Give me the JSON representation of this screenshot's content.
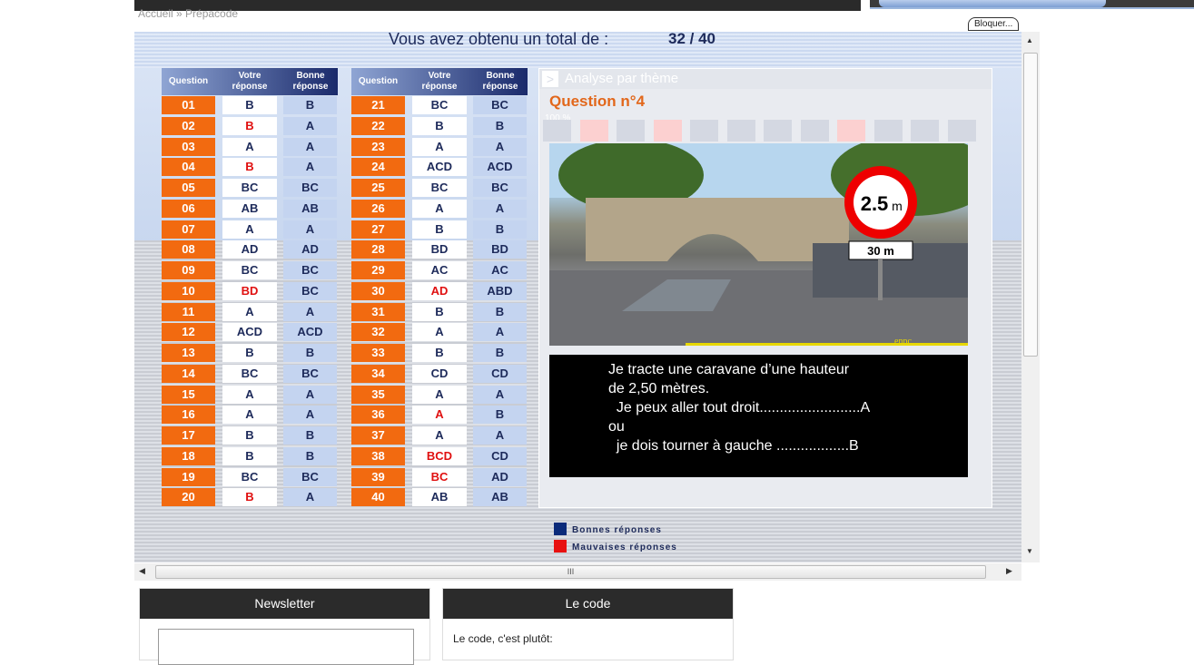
{
  "breadcrumb": "Accueil » Prépacode",
  "block_button": "Bloquer...",
  "result": {
    "title": "Vous avez obtenu un total de :",
    "score": "32 / 40"
  },
  "table_headers": {
    "question": "Question",
    "votre": "Votre réponse",
    "bonne": "Bonne réponse"
  },
  "rows": [
    {
      "q": "01",
      "v": "B",
      "b": "B",
      "ok": true
    },
    {
      "q": "02",
      "v": "B",
      "b": "A",
      "ok": false
    },
    {
      "q": "03",
      "v": "A",
      "b": "A",
      "ok": true
    },
    {
      "q": "04",
      "v": "B",
      "b": "A",
      "ok": false
    },
    {
      "q": "05",
      "v": "BC",
      "b": "BC",
      "ok": true
    },
    {
      "q": "06",
      "v": "AB",
      "b": "AB",
      "ok": true
    },
    {
      "q": "07",
      "v": "A",
      "b": "A",
      "ok": true
    },
    {
      "q": "08",
      "v": "AD",
      "b": "AD",
      "ok": true
    },
    {
      "q": "09",
      "v": "BC",
      "b": "BC",
      "ok": true
    },
    {
      "q": "10",
      "v": "BD",
      "b": "BC",
      "ok": false
    },
    {
      "q": "11",
      "v": "A",
      "b": "A",
      "ok": true
    },
    {
      "q": "12",
      "v": "ACD",
      "b": "ACD",
      "ok": true
    },
    {
      "q": "13",
      "v": "B",
      "b": "B",
      "ok": true
    },
    {
      "q": "14",
      "v": "BC",
      "b": "BC",
      "ok": true
    },
    {
      "q": "15",
      "v": "A",
      "b": "A",
      "ok": true
    },
    {
      "q": "16",
      "v": "A",
      "b": "A",
      "ok": true
    },
    {
      "q": "17",
      "v": "B",
      "b": "B",
      "ok": true
    },
    {
      "q": "18",
      "v": "B",
      "b": "B",
      "ok": true
    },
    {
      "q": "19",
      "v": "BC",
      "b": "BC",
      "ok": true
    },
    {
      "q": "20",
      "v": "B",
      "b": "A",
      "ok": false
    },
    {
      "q": "21",
      "v": "BC",
      "b": "BC",
      "ok": true
    },
    {
      "q": "22",
      "v": "B",
      "b": "B",
      "ok": true
    },
    {
      "q": "23",
      "v": "A",
      "b": "A",
      "ok": true
    },
    {
      "q": "24",
      "v": "ACD",
      "b": "ACD",
      "ok": true
    },
    {
      "q": "25",
      "v": "BC",
      "b": "BC",
      "ok": true
    },
    {
      "q": "26",
      "v": "A",
      "b": "A",
      "ok": true
    },
    {
      "q": "27",
      "v": "B",
      "b": "B",
      "ok": true
    },
    {
      "q": "28",
      "v": "BD",
      "b": "BD",
      "ok": true
    },
    {
      "q": "29",
      "v": "AC",
      "b": "AC",
      "ok": true
    },
    {
      "q": "30",
      "v": "AD",
      "b": "ABD",
      "ok": false
    },
    {
      "q": "31",
      "v": "B",
      "b": "B",
      "ok": true
    },
    {
      "q": "32",
      "v": "A",
      "b": "A",
      "ok": true
    },
    {
      "q": "33",
      "v": "B",
      "b": "B",
      "ok": true
    },
    {
      "q": "34",
      "v": "CD",
      "b": "CD",
      "ok": true
    },
    {
      "q": "35",
      "v": "A",
      "b": "A",
      "ok": true
    },
    {
      "q": "36",
      "v": "A",
      "b": "B",
      "ok": false
    },
    {
      "q": "37",
      "v": "A",
      "b": "A",
      "ok": true
    },
    {
      "q": "38",
      "v": "BCD",
      "b": "CD",
      "ok": false
    },
    {
      "q": "39",
      "v": "BC",
      "b": "AD",
      "ok": false
    },
    {
      "q": "40",
      "v": "AB",
      "b": "AB",
      "ok": true
    }
  ],
  "panel": {
    "header": "Analyse par thème",
    "question_title": "Question n°4",
    "percent_label": "100 %",
    "theme_bars_wrong": [
      false,
      true,
      false,
      true,
      false,
      false,
      false,
      false,
      true,
      false,
      false,
      false
    ],
    "sign": {
      "limit": "2.5",
      "unit": "m",
      "distance": "30 m"
    },
    "watermark": "enpc",
    "caption": [
      "Je tracte une caravane d’une hauteur",
      "de 2,50 mètres.",
      "  Je peux aller tout droit.........................A",
      "ou",
      "  je dois tourner à gauche ..................B"
    ]
  },
  "legend": {
    "good": "Bonnes réponses",
    "bad": "Mauvaises réponses",
    "good_color": "#0a2a7a",
    "bad_color": "#e81010"
  },
  "colors": {
    "question_cell": "#f26a10",
    "wrong_text": "#e01010",
    "right_text": "#1d2a5a"
  },
  "newsletter": {
    "title": "Newsletter",
    "input_value": ""
  },
  "code": {
    "title": "Le code",
    "text": "Le code, c'est plutôt:"
  },
  "hscroll_grip": "III"
}
